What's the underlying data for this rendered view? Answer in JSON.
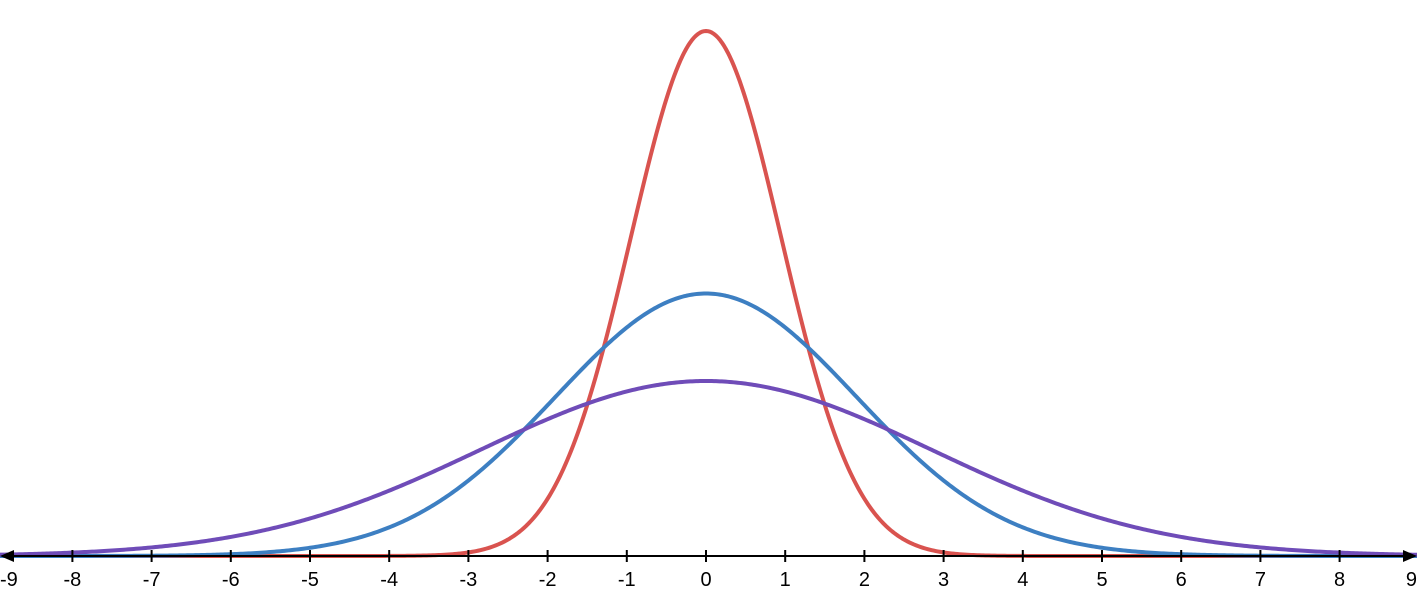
{
  "chart_data": {
    "type": "line",
    "title": "",
    "xlabel": "",
    "ylabel": "",
    "xlim": [
      -9,
      9
    ],
    "ylim": [
      0,
      0.42
    ],
    "grid": false,
    "x_ticks": [
      -9,
      -8,
      -7,
      -6,
      -5,
      -4,
      -3,
      -2,
      -1,
      0,
      1,
      2,
      3,
      4,
      5,
      6,
      7,
      8,
      9
    ],
    "x_tick_labels": [
      "-9",
      "-8",
      "-7",
      "-6",
      "-5",
      "-4",
      "-3",
      "-2",
      "-1",
      "0",
      "1",
      "2",
      "3",
      "4",
      "5",
      "6",
      "7",
      "8",
      "9"
    ],
    "axis_arrows": true,
    "series": [
      {
        "color": "#d9534f",
        "kind": "normal-pdf",
        "mean": 0,
        "sd": 0.95,
        "peak": 0.42
      },
      {
        "color": "#3d7fc2",
        "kind": "normal-pdf",
        "mean": 0,
        "sd": 1.9,
        "peak": 0.21
      },
      {
        "color": "#6f4cb8",
        "kind": "normal-pdf",
        "mean": 0,
        "sd": 2.85,
        "peak": 0.14
      }
    ]
  }
}
